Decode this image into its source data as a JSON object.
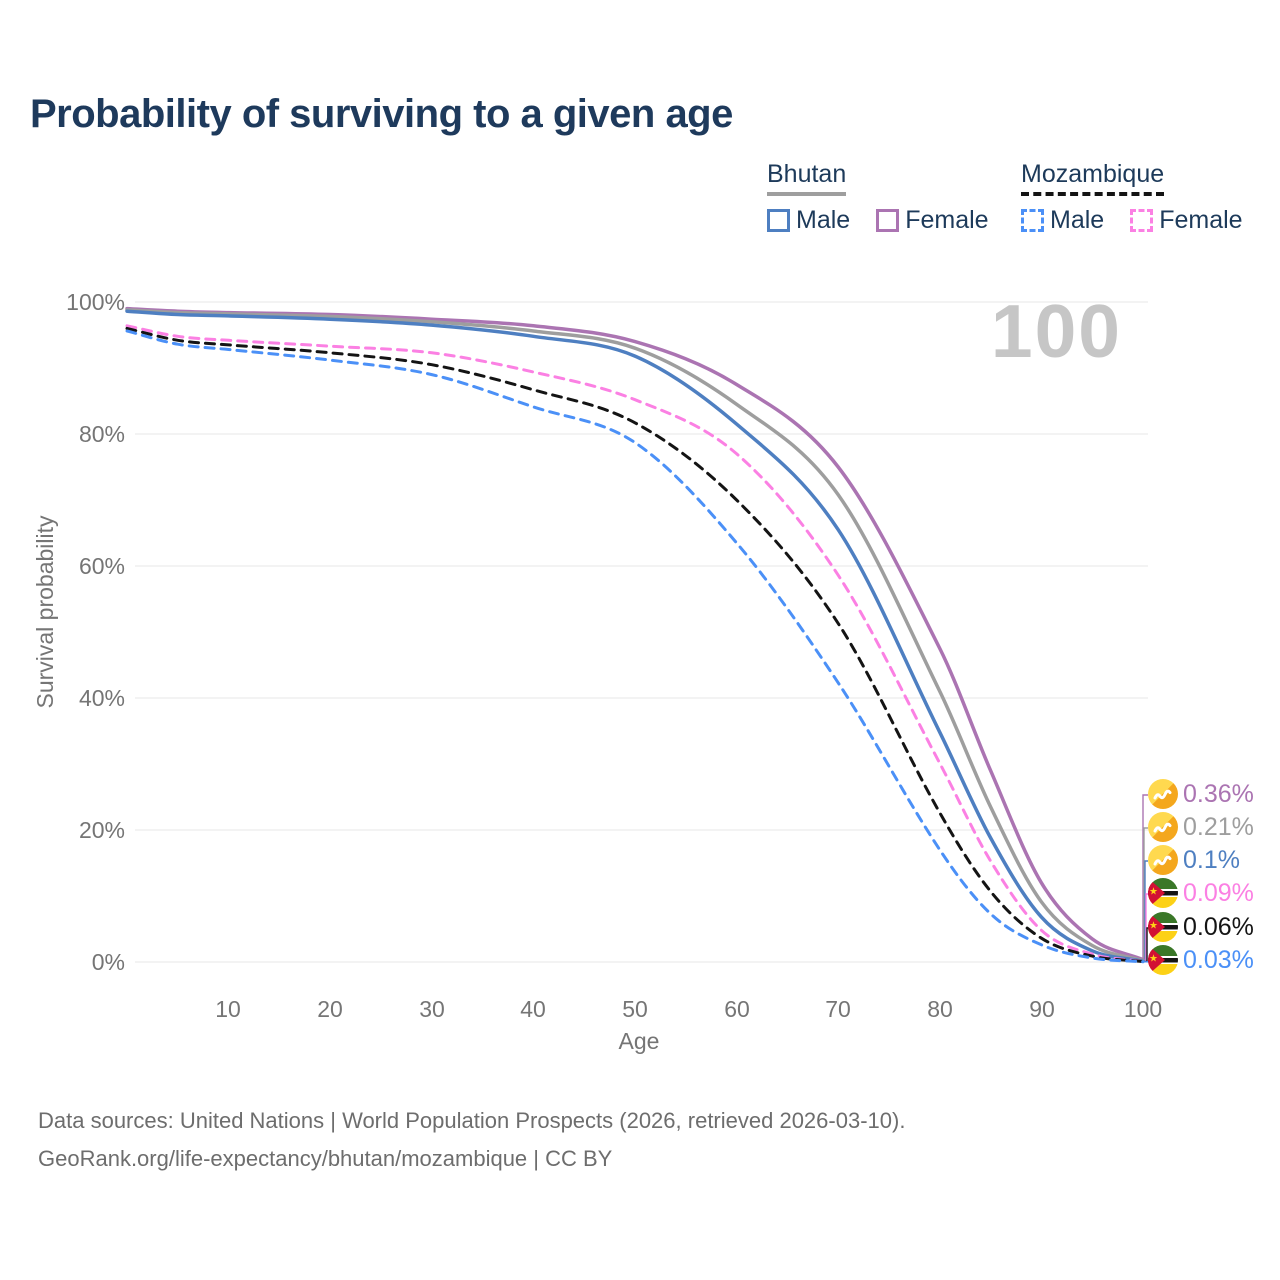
{
  "header": {
    "title": "Probability of surviving to a given age"
  },
  "watermark": "100",
  "legend": {
    "groups": [
      {
        "label": "Bhutan",
        "line_style": "solid",
        "underline_color": "#9e9e9e",
        "items": [
          {
            "label": "Male",
            "color": "#4e7fc1"
          },
          {
            "label": "Female",
            "color": "#ab74b2"
          }
        ]
      },
      {
        "label": "Mozambique",
        "line_style": "dashed",
        "underline_color": "#141414",
        "items": [
          {
            "label": "Male",
            "color": "#4b90f7"
          },
          {
            "label": "Female",
            "color": "#fb80e3"
          }
        ]
      }
    ]
  },
  "axes": {
    "y_title": "Survival probability",
    "x_title": "Age",
    "y_ticks": [
      "100%",
      "80%",
      "60%",
      "40%",
      "20%",
      "0%"
    ],
    "x_ticks": [
      "10",
      "20",
      "30",
      "40",
      "50",
      "60",
      "70",
      "80",
      "90",
      "100"
    ]
  },
  "chart_data": {
    "type": "line",
    "title": "Probability of surviving to a given age",
    "xlabel": "Age",
    "ylabel": "Survival probability",
    "xlim": [
      0,
      100
    ],
    "ylim": [
      0,
      100
    ],
    "y_unit": "%",
    "grid": "horizontal",
    "legend_position": "top-right",
    "x": [
      0,
      5,
      10,
      20,
      30,
      40,
      50,
      60,
      70,
      80,
      85,
      90,
      95,
      100
    ],
    "series": [
      {
        "name": "Bhutan Female",
        "country": "Bhutan",
        "sex": "Female",
        "dash": "solid",
        "color": "#ab74b2",
        "values": [
          99.0,
          98.6,
          98.4,
          98.1,
          97.4,
          96.4,
          94.0,
          87.5,
          75.0,
          47.5,
          29.0,
          12.0,
          3.5,
          0.36
        ],
        "end_label": "0.36%",
        "flag": "bhutan"
      },
      {
        "name": "Bhutan Both sexes",
        "country": "Bhutan",
        "sex": "Both",
        "dash": "solid",
        "color": "#9e9e9e",
        "values": [
          98.8,
          98.4,
          98.2,
          97.8,
          97.0,
          95.6,
          93.0,
          84.5,
          70.8,
          41.0,
          23.5,
          9.1,
          2.5,
          0.21
        ],
        "end_label": "0.21%",
        "flag": "bhutan"
      },
      {
        "name": "Bhutan Male",
        "country": "Bhutan",
        "sex": "Male",
        "dash": "solid",
        "color": "#4e7fc1",
        "values": [
          98.6,
          98.1,
          97.9,
          97.4,
          96.5,
          94.8,
          91.8,
          81.5,
          65.5,
          34.8,
          18.8,
          6.8,
          1.7,
          0.1
        ],
        "end_label": "0.1%",
        "flag": "bhutan"
      },
      {
        "name": "Mozambique Female",
        "country": "Mozambique",
        "sex": "Female",
        "dash": "dashed",
        "color": "#fb80e3",
        "values": [
          96.4,
          94.8,
          94.2,
          93.3,
          92.3,
          89.4,
          85.2,
          77.0,
          58.6,
          30.1,
          15.3,
          4.8,
          1.2,
          0.09
        ],
        "end_label": "0.09%",
        "flag": "mozambique"
      },
      {
        "name": "Mozambique Both sexes",
        "country": "Mozambique",
        "sex": "Both",
        "dash": "dashed",
        "color": "#141414",
        "values": [
          96.0,
          94.2,
          93.5,
          92.3,
          90.5,
          86.7,
          81.7,
          70.0,
          51.3,
          22.6,
          10.7,
          3.6,
          0.9,
          0.06
        ],
        "end_label": "0.06%",
        "flag": "mozambique"
      },
      {
        "name": "Mozambique Male",
        "country": "Mozambique",
        "sex": "Male",
        "dash": "dashed",
        "color": "#4b90f7",
        "values": [
          95.6,
          93.6,
          92.8,
          91.2,
          89.0,
          84.1,
          78.7,
          63.5,
          42.3,
          17.0,
          7.3,
          2.6,
          0.6,
          0.03
        ],
        "end_label": "0.03%",
        "flag": "mozambique"
      }
    ]
  },
  "footer": {
    "line1": "Data sources: United Nations | World Population Prospects (2026, retrieved 2026-03-10).",
    "line2": "GeoRank.org/life-expectancy/bhutan/mozambique | CC BY"
  }
}
